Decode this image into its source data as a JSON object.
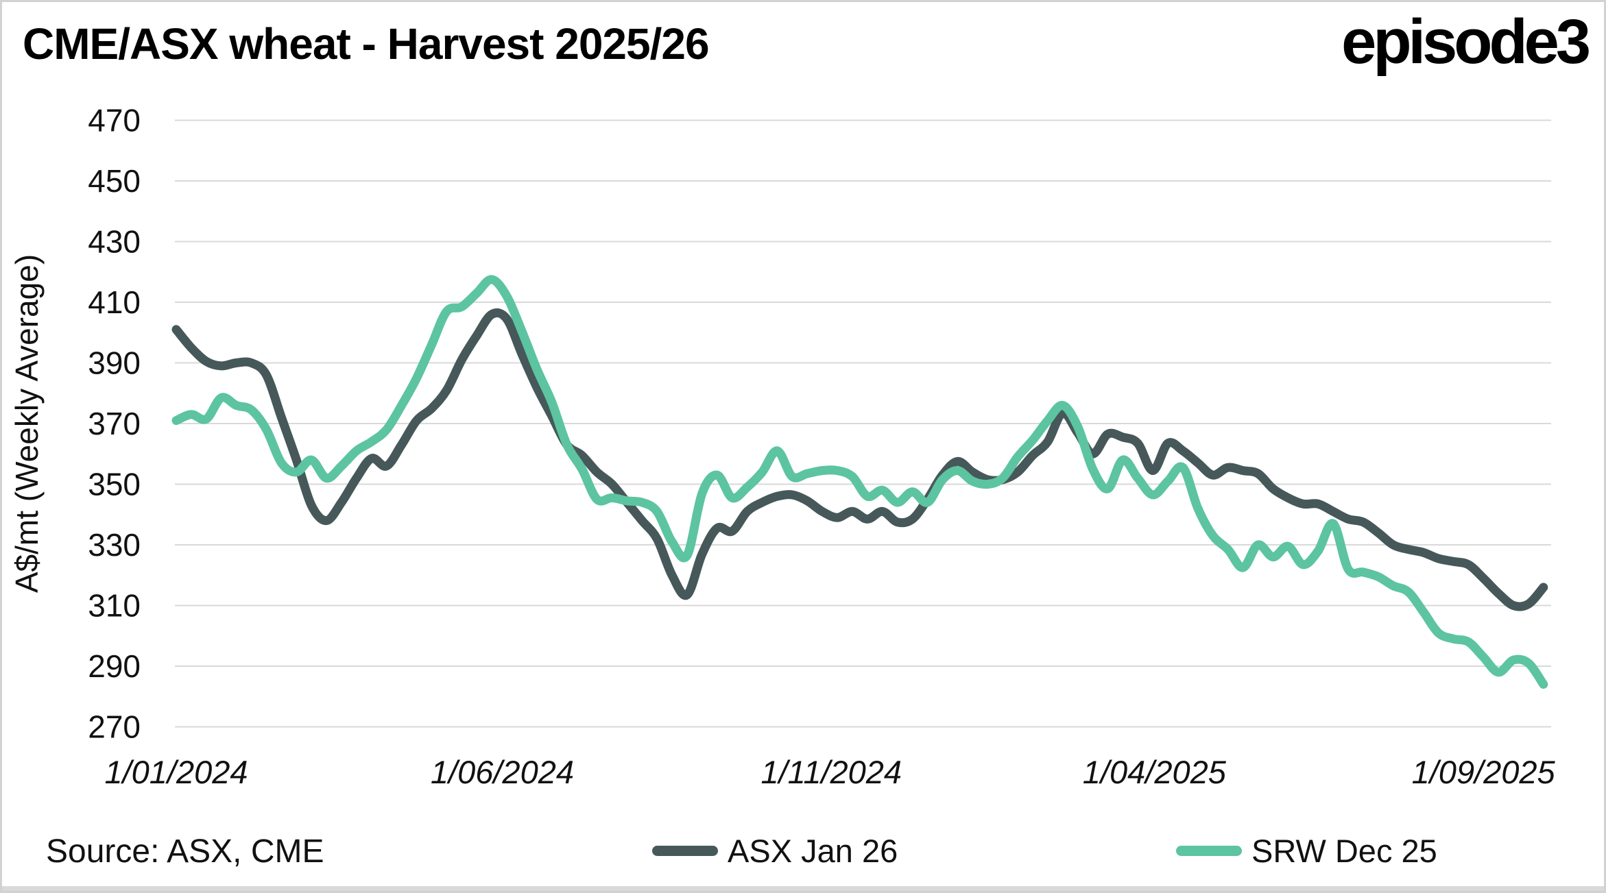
{
  "header": {
    "title": "CME/ASX wheat - Harvest 2025/26",
    "logo_text": "episode3"
  },
  "footer": {
    "source": "Source: ASX, CME"
  },
  "chart_data": {
    "type": "line",
    "title": "CME/ASX wheat - Harvest 2025/26",
    "ylabel": "A$/mt (Weekly Average)",
    "xlabel": "",
    "ylim": [
      270,
      470
    ],
    "ytick_interval": 20,
    "yticks": [
      270,
      290,
      310,
      330,
      350,
      370,
      390,
      410,
      430,
      450,
      470
    ],
    "grid": "horizontal-only",
    "gridline_color": "#d9d9d9",
    "legend_position": "bottom",
    "x_unit": "weeks since 1/01/2024, weekly average points",
    "xticks": [
      {
        "label": "1/01/2024",
        "week": 0
      },
      {
        "label": "1/06/2024",
        "week": 21.7
      },
      {
        "label": "1/11/2024",
        "week": 43.6
      },
      {
        "label": "1/04/2025",
        "week": 65.1
      },
      {
        "label": "1/09/2025",
        "week": 87.0
      }
    ],
    "series": [
      {
        "name": "ASX Jan 26",
        "color": "#46585a",
        "values": [
          401,
          395,
          390.5,
          389,
          390,
          390,
          386,
          372,
          358,
          343,
          338,
          344,
          352,
          358.5,
          356,
          363,
          371,
          375,
          381,
          391,
          399,
          406,
          404.5,
          393,
          382,
          372.5,
          363,
          359.5,
          354,
          350,
          344,
          338,
          332,
          320,
          313.5,
          327,
          335.5,
          334.5,
          341,
          344,
          346,
          346.5,
          344.5,
          341,
          339,
          341,
          338.5,
          341,
          337.5,
          338.5,
          345,
          353,
          357.5,
          354,
          351.5,
          351.5,
          354,
          359.5,
          364,
          373.5,
          367,
          360,
          366.5,
          365.5,
          363.5,
          354.5,
          363.5,
          361,
          357,
          353,
          355.5,
          354.5,
          353.5,
          348.5,
          345.5,
          343.5,
          343.5,
          341,
          338.5,
          337.5,
          334,
          330,
          328.5,
          327.5,
          325.5,
          324.5,
          323.5,
          319,
          314,
          310,
          310.5,
          316
        ]
      },
      {
        "name": "SRW Dec 25",
        "color": "#5cc4a0",
        "values": [
          371,
          373,
          371.5,
          378.5,
          376,
          374.5,
          368,
          357,
          354,
          358,
          352,
          356,
          361,
          364,
          368,
          376,
          385,
          396,
          407,
          408.5,
          413,
          417.5,
          412,
          400.5,
          388,
          377,
          363,
          355,
          345,
          345.5,
          344.5,
          344,
          341,
          331,
          326.5,
          347,
          353,
          345.5,
          349,
          354,
          361,
          352.5,
          353.5,
          354.5,
          354.5,
          352.5,
          346,
          348,
          344,
          347.5,
          344,
          351.5,
          354.5,
          351,
          350,
          352,
          359,
          364.5,
          371,
          376,
          369,
          355,
          348.5,
          358,
          352,
          346.5,
          351,
          355.5,
          342,
          333,
          328.5,
          322.5,
          330,
          326,
          329.5,
          323.5,
          328,
          337,
          322,
          321,
          319.5,
          316.5,
          314.5,
          308,
          301,
          299,
          298,
          293,
          288,
          292,
          291,
          284
        ]
      }
    ]
  },
  "style": {
    "axis_text_color": "#111111",
    "line_thickness": 13
  }
}
